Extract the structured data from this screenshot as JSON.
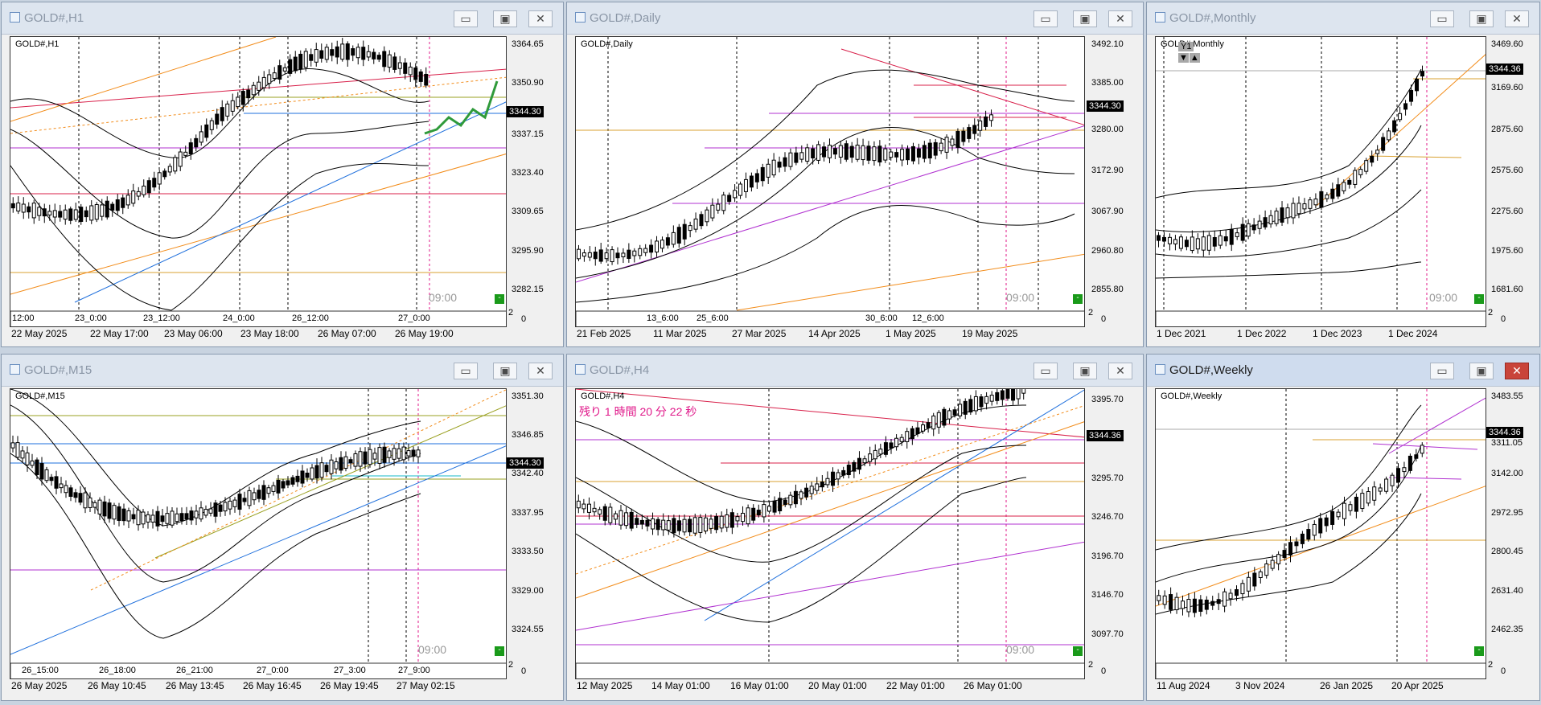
{
  "windows": [
    {
      "id": "h1",
      "title": "GOLD#,H1",
      "chart_label": "GOLD#,H1",
      "active": false,
      "y_labels": [
        "3364.65",
        "3350.90",
        "3337.15",
        "3323.40",
        "3309.65",
        "3295.90",
        "3282.15"
      ],
      "current_price": "3344.30",
      "indicator_zero": "0",
      "indicator_top": "2",
      "inner_x": [
        "12:00",
        "23_0:00",
        "23_12:00",
        "24_0:00",
        "26_12:00",
        "27_0:00"
      ],
      "x_labels": [
        "22 May 2025",
        "22 May 17:00",
        "23 May 06:00",
        "23 May 18:00",
        "26 May 07:00",
        "26 May 19:00"
      ],
      "time_label": "09:00",
      "indicator_button": "-"
    },
    {
      "id": "daily",
      "title": "GOLD#,Daily",
      "chart_label": "GOLD#,Daily",
      "active": false,
      "y_labels": [
        "3492.10",
        "3385.00",
        "3280.00",
        "3172.90",
        "3067.90",
        "2960.80",
        "2855.80"
      ],
      "current_price": "3344.30",
      "indicator_zero": "0",
      "indicator_top": "2",
      "inner_x": [
        "13_6:00",
        "25_6:00",
        "30_6:00",
        "12_6:00"
      ],
      "x_labels": [
        "21 Feb 2025",
        "11 Mar 2025",
        "27 Mar 2025",
        "14 Apr 2025",
        "1 May 2025",
        "19 May 2025"
      ],
      "time_label": "09:00",
      "indicator_button": "-"
    },
    {
      "id": "monthly",
      "title": "GOLD#,Monthly",
      "chart_label": "GOLD#,Monthly",
      "active": false,
      "y_labels": [
        "3469.60",
        "3169.60",
        "2875.60",
        "2575.60",
        "2275.60",
        "1975.60",
        "1681.60"
      ],
      "current_price": "3344.36",
      "indicator_zero": "0",
      "indicator_top": "2",
      "inner_x": [],
      "x_labels": [
        "1 Dec 2021",
        "1 Dec 2022",
        "1 Dec 2023",
        "1 Dec 2024"
      ],
      "time_label": "09:00",
      "indicator_button": "-",
      "period_button": "Y1",
      "arrow_down": "▼",
      "arrow_up": "▲"
    },
    {
      "id": "m15",
      "title": "GOLD#,M15",
      "chart_label": "GOLD#,M15",
      "active": false,
      "y_labels": [
        "3351.30",
        "3346.85",
        "3342.40",
        "3337.95",
        "3333.50",
        "3329.00",
        "3324.55"
      ],
      "current_price": "3344.30",
      "indicator_zero": "0",
      "indicator_top": "2",
      "inner_x": [
        "26_15:00",
        "26_18:00",
        "26_21:00",
        "27_0:00",
        "27_3:00",
        "27_9:00"
      ],
      "x_labels": [
        "26 May 2025",
        "26 May 10:45",
        "26 May 13:45",
        "26 May 16:45",
        "26 May 19:45",
        "27 May 02:15"
      ],
      "time_label": "09:00",
      "indicator_button": "-"
    },
    {
      "id": "h4",
      "title": "GOLD#,H4",
      "chart_label": "GOLD#,H4",
      "active": false,
      "y_labels": [
        "3395.70",
        "3344.36",
        "3295.70",
        "3246.70",
        "3196.70",
        "3146.70",
        "3097.70"
      ],
      "current_price": "3344.36",
      "indicator_zero": "0",
      "indicator_top": "2",
      "inner_x": [],
      "x_labels": [
        "12 May 2025",
        "14 May 01:00",
        "16 May 01:00",
        "20 May 01:00",
        "22 May 01:00",
        "26 May 01:00"
      ],
      "time_label": "09:00",
      "indicator_button": "-",
      "countdown": "残り 1 時間 20 分 22 秒"
    },
    {
      "id": "weekly",
      "title": "GOLD#,Weekly",
      "chart_label": "GOLD#,Weekly",
      "active": true,
      "y_labels": [
        "3483.55",
        "3311.05",
        "3142.00",
        "2972.95",
        "2800.45",
        "2631.40",
        "2462.35"
      ],
      "current_price": "3344.36",
      "indicator_zero": "0",
      "indicator_top": "2",
      "inner_x": [],
      "x_labels": [
        "11 Aug 2024",
        "3 Nov 2024",
        "26 Jan 2025",
        "20 Apr 2025"
      ],
      "time_label": "",
      "indicator_button": "-"
    }
  ],
  "title_buttons": {
    "minimize": "▭",
    "maximize": "▣",
    "close": "✕"
  },
  "colors": {
    "bull_candle": "#ffffff",
    "bear_candle": "#000000",
    "bollinger": "#000000",
    "trend_orange": "#f28c1a",
    "trend_blue": "#1e6fdc",
    "trend_red": "#d8204a",
    "level_magenta": "#b030d0",
    "level_gold": "#d8a030",
    "projection_green": "#2f9a3a",
    "session_line_magenta": "#e0188a"
  }
}
